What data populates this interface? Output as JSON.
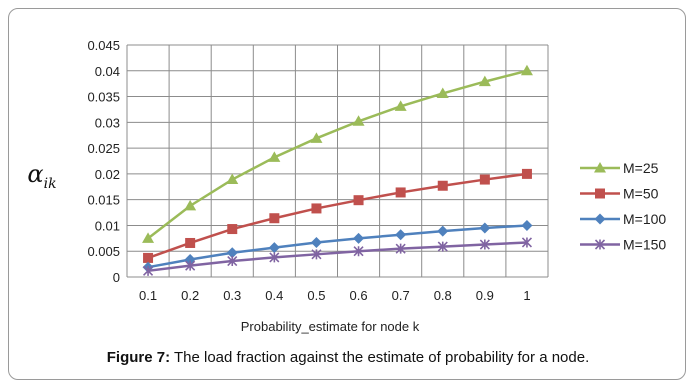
{
  "chart_data": {
    "type": "line",
    "title": "",
    "xlabel": "Probability_estimate for node k",
    "ylabel": "α",
    "ylabel_subscript": "ik",
    "x": [
      0.1,
      0.2,
      0.3,
      0.4,
      0.5,
      0.6,
      0.7,
      0.8,
      0.9,
      1
    ],
    "x_tick_labels": [
      "0.1",
      "0.2",
      "0.3",
      "0.4",
      "0.5",
      "0.6",
      "0.7",
      "0.8",
      "0.9",
      "1"
    ],
    "y_tick_labels": [
      "0",
      "0.005",
      "0.01",
      "0.015",
      "0.02",
      "0.025",
      "0.03",
      "0.035",
      "0.04",
      "0.045"
    ],
    "ylim": [
      0,
      0.045
    ],
    "grid": true,
    "legend_position": "right",
    "series": [
      {
        "name": "M=25",
        "color": "#9bbb59",
        "marker": "triangle",
        "values": [
          0.0075,
          0.0138,
          0.0189,
          0.0232,
          0.0269,
          0.0302,
          0.0331,
          0.0356,
          0.0379,
          0.04
        ]
      },
      {
        "name": "M=50",
        "color": "#c0504d",
        "marker": "square",
        "values": [
          0.0037,
          0.0066,
          0.0093,
          0.0114,
          0.0133,
          0.0149,
          0.0164,
          0.0177,
          0.0189,
          0.02
        ]
      },
      {
        "name": "M=100",
        "color": "#4f81bd",
        "marker": "diamond",
        "values": [
          0.0019,
          0.0034,
          0.0047,
          0.0057,
          0.0067,
          0.0075,
          0.0082,
          0.0089,
          0.0095,
          0.01
        ]
      },
      {
        "name": "M=150",
        "color": "#8064a2",
        "marker": "x",
        "values": [
          0.0012,
          0.0022,
          0.0031,
          0.0038,
          0.0044,
          0.005,
          0.0055,
          0.0059,
          0.0063,
          0.0067
        ]
      }
    ]
  },
  "caption": {
    "label": "Figure 7:",
    "text": " The load fraction against the estimate of probability for a node."
  }
}
